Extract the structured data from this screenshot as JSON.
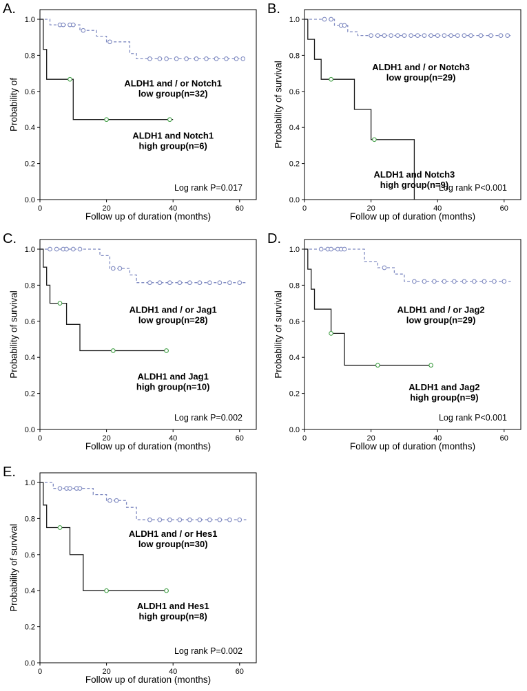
{
  "figure": {
    "x_tick_labels": [
      "0",
      "20",
      "40",
      "60"
    ],
    "x_ticks": [
      0,
      20,
      40,
      60
    ],
    "y_tick_labels": [
      "0.0",
      "0.2",
      "0.4",
      "0.6",
      "0.8",
      "1.0"
    ],
    "colors": {
      "low": "#7f8ac1",
      "high": "#1c1c1c",
      "censor_high": "#43a047",
      "axis": "#000000"
    }
  },
  "chart_data": [
    {
      "panel": "A.",
      "type": "line",
      "ylabel": "Probability of",
      "xlabel": "Follow up of duration (months)",
      "xlim": [
        0,
        65
      ],
      "ylim": [
        0,
        1.05
      ],
      "pvalue": "Log rank P=0.017",
      "series": [
        {
          "name": "ALDH1 and / or Notch1 low group(n=32)",
          "group": "low",
          "style": "dashed",
          "points": [
            [
              3,
              0.969
            ],
            [
              12,
              0.938
            ],
            [
              17,
              0.906
            ],
            [
              20,
              0.875
            ],
            [
              27,
              0.81
            ],
            [
              29,
              0.781
            ]
          ],
          "end": 62,
          "censors": [
            [
              6,
              0.969
            ],
            [
              7,
              0.969
            ],
            [
              9,
              0.969
            ],
            [
              10,
              0.969
            ],
            [
              13,
              0.938
            ],
            [
              21,
              0.875
            ],
            [
              33,
              0.781
            ],
            [
              36,
              0.781
            ],
            [
              38,
              0.781
            ],
            [
              41,
              0.781
            ],
            [
              44,
              0.781
            ],
            [
              47,
              0.781
            ],
            [
              50,
              0.781
            ],
            [
              53,
              0.781
            ],
            [
              56,
              0.781
            ],
            [
              59,
              0.781
            ],
            [
              61,
              0.781
            ]
          ]
        },
        {
          "name": "ALDH1 and Notch1 high group(n=6)",
          "group": "high",
          "style": "solid",
          "points": [
            [
              1,
              0.833
            ],
            [
              2,
              0.667
            ],
            [
              10,
              0.444
            ]
          ],
          "end": 40,
          "censors": [
            [
              9,
              0.667
            ],
            [
              20,
              0.444
            ],
            [
              39,
              0.444
            ]
          ]
        }
      ],
      "annotations": [
        {
          "lines": [
            "ALDH1 and / or Notch1",
            "low group(n=32)"
          ],
          "x": 40,
          "y": 0.62
        },
        {
          "lines": [
            "ALDH1 and Notch1",
            "high group(n=6)"
          ],
          "x": 40,
          "y": 0.33
        }
      ]
    },
    {
      "panel": "B.",
      "type": "line",
      "ylabel": "Probability of survival",
      "xlabel": "Follow up of duration (months)",
      "xlim": [
        0,
        65
      ],
      "ylim": [
        0,
        1.05
      ],
      "pvalue": "Log rank P<0.001",
      "series": [
        {
          "name": "ALDH1 and / or Notch3 low group(n=29)",
          "group": "low",
          "style": "dashed",
          "points": [
            [
              9,
              0.966
            ],
            [
              13,
              0.931
            ],
            [
              16,
              0.91
            ]
          ],
          "end": 62,
          "censors": [
            [
              6,
              1.0
            ],
            [
              8,
              1.0
            ],
            [
              11,
              0.966
            ],
            [
              12,
              0.966
            ],
            [
              20,
              0.91
            ],
            [
              22,
              0.91
            ],
            [
              24,
              0.91
            ],
            [
              26,
              0.91
            ],
            [
              28,
              0.91
            ],
            [
              30,
              0.91
            ],
            [
              32,
              0.91
            ],
            [
              34,
              0.91
            ],
            [
              36,
              0.91
            ],
            [
              38,
              0.91
            ],
            [
              40,
              0.91
            ],
            [
              42,
              0.91
            ],
            [
              44,
              0.91
            ],
            [
              46,
              0.91
            ],
            [
              48,
              0.91
            ],
            [
              50,
              0.91
            ],
            [
              53,
              0.91
            ],
            [
              56,
              0.91
            ],
            [
              59,
              0.91
            ],
            [
              61,
              0.91
            ]
          ]
        },
        {
          "name": "ALDH1 and Notch3 high group(n=9)",
          "group": "high",
          "style": "solid",
          "points": [
            [
              1,
              0.889
            ],
            [
              3,
              0.778
            ],
            [
              5,
              0.667
            ],
            [
              15,
              0.5
            ],
            [
              20,
              0.333
            ],
            [
              33,
              0.0
            ]
          ],
          "end": 33,
          "censors": [
            [
              8,
              0.667
            ],
            [
              21,
              0.333
            ]
          ]
        }
      ],
      "annotations": [
        {
          "lines": [
            "ALDH1 and / or Notch3",
            "low group(n=29)"
          ],
          "x": 35,
          "y": 0.71
        },
        {
          "lines": [
            "ALDH1 and Notch3",
            "high group(n=9)"
          ],
          "x": 33,
          "y": 0.115
        }
      ]
    },
    {
      "panel": "C.",
      "type": "line",
      "ylabel": "Probability of survival",
      "xlabel": "Follow up of duration (months)",
      "xlim": [
        0,
        65
      ],
      "ylim": [
        0,
        1.05
      ],
      "pvalue": "Log rank P=0.002",
      "series": [
        {
          "name": "ALDH1 and / or Jag1 low group(n=28)",
          "group": "low",
          "style": "dashed",
          "points": [
            [
              18,
              0.964
            ],
            [
              21,
              0.893
            ],
            [
              27,
              0.857
            ],
            [
              29,
              0.814
            ]
          ],
          "end": 62,
          "censors": [
            [
              3,
              1.0
            ],
            [
              5,
              1.0
            ],
            [
              7,
              1.0
            ],
            [
              8,
              1.0
            ],
            [
              10,
              1.0
            ],
            [
              12,
              1.0
            ],
            [
              22,
              0.893
            ],
            [
              24,
              0.893
            ],
            [
              33,
              0.814
            ],
            [
              36,
              0.814
            ],
            [
              39,
              0.814
            ],
            [
              42,
              0.814
            ],
            [
              45,
              0.814
            ],
            [
              48,
              0.814
            ],
            [
              51,
              0.814
            ],
            [
              54,
              0.814
            ],
            [
              57,
              0.814
            ],
            [
              60,
              0.814
            ]
          ]
        },
        {
          "name": "ALDH1 and Jag1 high group(n=10)",
          "group": "high",
          "style": "solid",
          "points": [
            [
              1,
              0.9
            ],
            [
              2,
              0.8
            ],
            [
              3,
              0.7
            ],
            [
              8,
              0.583
            ],
            [
              12,
              0.437
            ]
          ],
          "end": 38,
          "censors": [
            [
              6,
              0.7
            ],
            [
              22,
              0.437
            ],
            [
              38,
              0.437
            ]
          ]
        }
      ],
      "annotations": [
        {
          "lines": [
            "ALDH1 and / or Jag1",
            "low group(n=28)"
          ],
          "x": 40,
          "y": 0.64
        },
        {
          "lines": [
            "ALDH1 and Jag1",
            "high group(n=10)"
          ],
          "x": 40,
          "y": 0.27
        }
      ]
    },
    {
      "panel": "D.",
      "type": "line",
      "ylabel": "Probability of survival",
      "xlabel": "Follow up of duration (months)",
      "xlim": [
        0,
        65
      ],
      "ylim": [
        0,
        1.05
      ],
      "pvalue": "Log rank P<0.001",
      "series": [
        {
          "name": "ALDH1 and / or Jag2 low group(n=29)",
          "group": "low",
          "style": "dashed",
          "points": [
            [
              18,
              0.931
            ],
            [
              22,
              0.897
            ],
            [
              27,
              0.862
            ],
            [
              30,
              0.821
            ]
          ],
          "end": 62,
          "censors": [
            [
              5,
              1.0
            ],
            [
              7,
              1.0
            ],
            [
              8,
              1.0
            ],
            [
              10,
              1.0
            ],
            [
              11,
              1.0
            ],
            [
              12,
              1.0
            ],
            [
              24,
              0.897
            ],
            [
              33,
              0.821
            ],
            [
              36,
              0.821
            ],
            [
              39,
              0.821
            ],
            [
              42,
              0.821
            ],
            [
              45,
              0.821
            ],
            [
              48,
              0.821
            ],
            [
              51,
              0.821
            ],
            [
              54,
              0.821
            ],
            [
              57,
              0.821
            ],
            [
              60,
              0.821
            ]
          ]
        },
        {
          "name": "ALDH1 and Jag2 high group(n=9)",
          "group": "high",
          "style": "solid",
          "points": [
            [
              1,
              0.889
            ],
            [
              2,
              0.778
            ],
            [
              3,
              0.667
            ],
            [
              8,
              0.533
            ],
            [
              12,
              0.356
            ]
          ],
          "end": 38,
          "censors": [
            [
              8,
              0.533
            ],
            [
              22,
              0.356
            ],
            [
              38,
              0.356
            ]
          ]
        }
      ],
      "annotations": [
        {
          "lines": [
            "ALDH1 and / or Jag2",
            "low group(n=29)"
          ],
          "x": 41,
          "y": 0.64
        },
        {
          "lines": [
            "ALDH1 and Jag2",
            "high group(n=9)"
          ],
          "x": 42,
          "y": 0.21
        }
      ]
    },
    {
      "panel": "E.",
      "type": "line",
      "ylabel": "Probability of survival",
      "xlabel": "Follow up of duration (months)",
      "xlim": [
        0,
        65
      ],
      "ylim": [
        0,
        1.05
      ],
      "pvalue": "Log rank P=0.002",
      "series": [
        {
          "name": "ALDH1 and / or Hes1 low group(n=30)",
          "group": "low",
          "style": "dashed",
          "points": [
            [
              4,
              0.967
            ],
            [
              16,
              0.933
            ],
            [
              20,
              0.9
            ],
            [
              26,
              0.862
            ],
            [
              29,
              0.793
            ]
          ],
          "end": 62,
          "censors": [
            [
              6,
              0.967
            ],
            [
              8,
              0.967
            ],
            [
              9,
              0.967
            ],
            [
              11,
              0.967
            ],
            [
              12,
              0.967
            ],
            [
              21,
              0.9
            ],
            [
              23,
              0.9
            ],
            [
              33,
              0.793
            ],
            [
              36,
              0.793
            ],
            [
              39,
              0.793
            ],
            [
              42,
              0.793
            ],
            [
              45,
              0.793
            ],
            [
              48,
              0.793
            ],
            [
              51,
              0.793
            ],
            [
              54,
              0.793
            ],
            [
              57,
              0.793
            ],
            [
              60,
              0.793
            ]
          ]
        },
        {
          "name": "ALDH1 and Hes1 high group(n=8)",
          "group": "high",
          "style": "solid",
          "points": [
            [
              1,
              0.875
            ],
            [
              2,
              0.75
            ],
            [
              9,
              0.6
            ],
            [
              13,
              0.4
            ]
          ],
          "end": 38,
          "censors": [
            [
              6,
              0.75
            ],
            [
              20,
              0.4
            ],
            [
              38,
              0.4
            ]
          ]
        }
      ],
      "annotations": [
        {
          "lines": [
            "ALDH1 and / or Hes1",
            "low group(n=30)"
          ],
          "x": 40,
          "y": 0.69
        },
        {
          "lines": [
            "ALDH1 and Hes1",
            "high group(n=8)"
          ],
          "x": 40,
          "y": 0.29
        }
      ]
    }
  ]
}
